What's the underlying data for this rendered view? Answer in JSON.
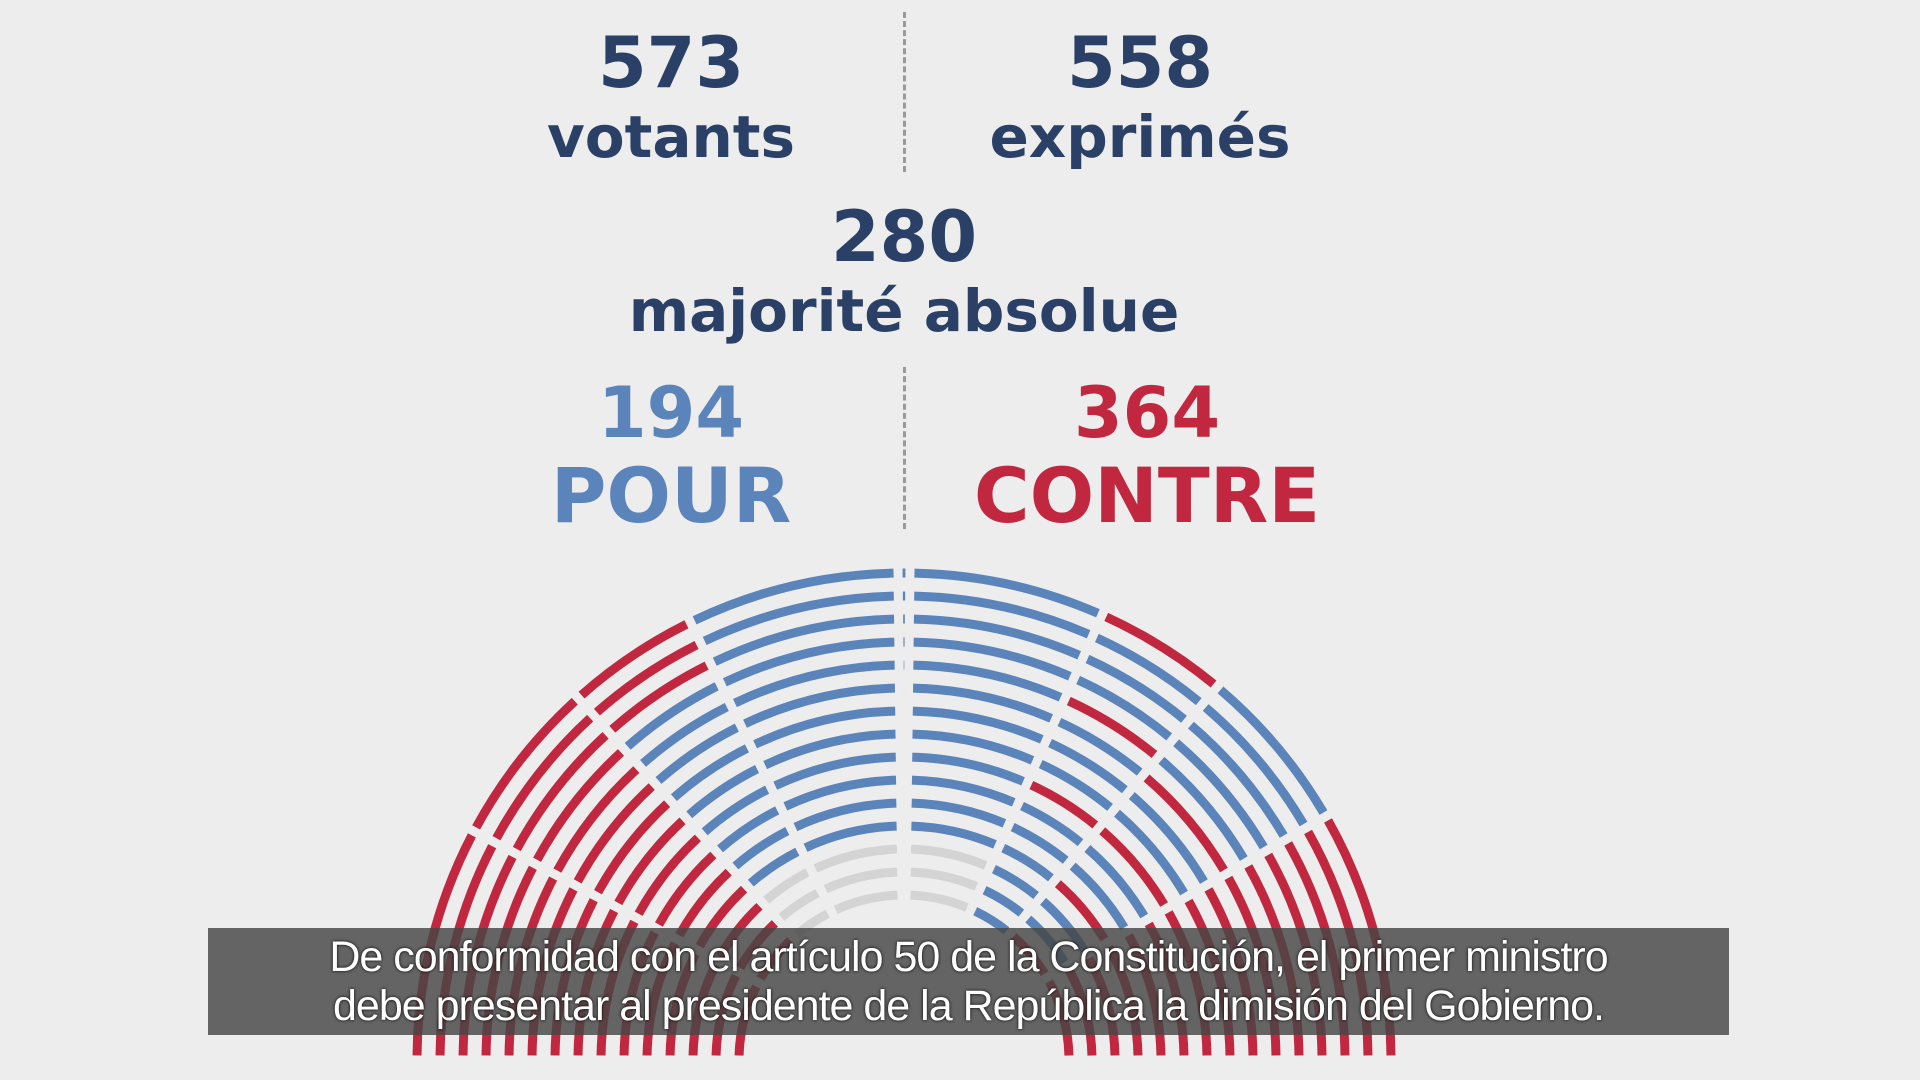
{
  "stats": {
    "votants": {
      "value": "573",
      "label": "votants"
    },
    "exprimes": {
      "value": "558",
      "label": "exprimés"
    },
    "majorite": {
      "value": "280",
      "label": "majorité absolue"
    },
    "pour": {
      "value": "194",
      "label": "POUR"
    },
    "contre": {
      "value": "364",
      "label": "CONTRE"
    }
  },
  "colors": {
    "text": "#2b4066",
    "pour": "#5b84bb",
    "contre": "#c1283f",
    "abstention": "#d4d4d4",
    "background": "#ededed"
  },
  "subtitles": {
    "line1": "De conformidad con el artículo 50 de la Constitución, el primer ministro",
    "line2": "debe presentar al presidente de la República la dimisión del Gobierno."
  }
}
